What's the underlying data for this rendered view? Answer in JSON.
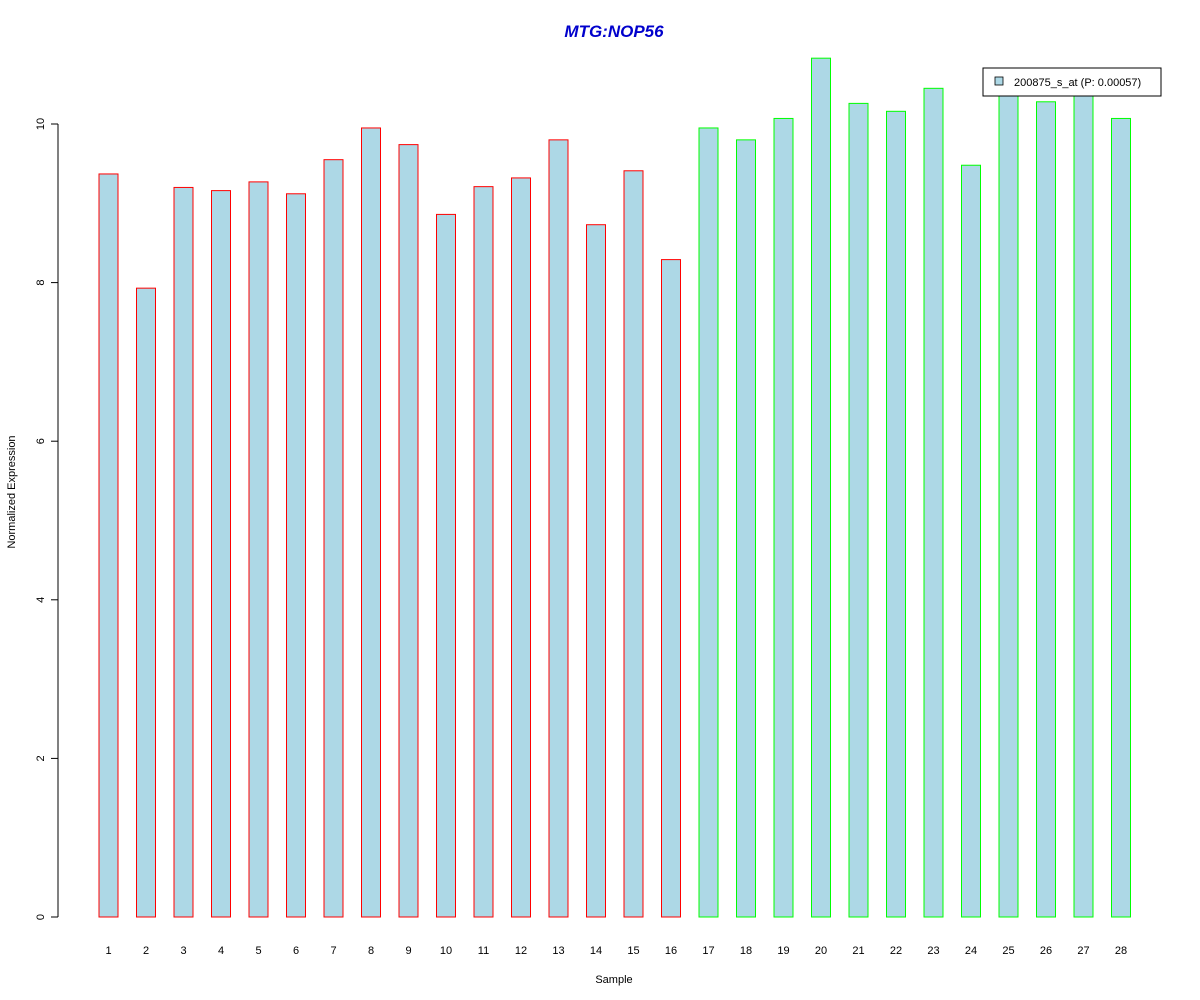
{
  "chart_data": {
    "type": "bar",
    "title": "MTG:NOP56",
    "xlabel": "Sample",
    "ylabel": "Normalized Expression",
    "ylim": [
      0,
      10.8
    ],
    "yticks": [
      0,
      2,
      4,
      6,
      8,
      10
    ],
    "categories": [
      "1",
      "2",
      "3",
      "4",
      "5",
      "6",
      "7",
      "8",
      "9",
      "10",
      "11",
      "12",
      "13",
      "14",
      "15",
      "16",
      "17",
      "18",
      "19",
      "20",
      "21",
      "22",
      "23",
      "24",
      "25",
      "26",
      "27",
      "28"
    ],
    "values": [
      9.37,
      7.93,
      9.2,
      9.16,
      9.27,
      9.12,
      9.55,
      9.95,
      9.74,
      8.86,
      9.21,
      9.32,
      9.8,
      8.73,
      9.41,
      8.29,
      9.95,
      9.8,
      10.07,
      10.83,
      10.26,
      10.16,
      10.45,
      9.48,
      10.4,
      10.28,
      10.4,
      10.07
    ],
    "groups": [
      "red",
      "red",
      "red",
      "red",
      "red",
      "red",
      "red",
      "red",
      "red",
      "red",
      "red",
      "red",
      "red",
      "red",
      "red",
      "red",
      "green",
      "green",
      "green",
      "green",
      "green",
      "green",
      "green",
      "green",
      "green",
      "green",
      "green",
      "green"
    ],
    "colors": {
      "fill": "#ADD8E6",
      "red": "#FF0000",
      "green": "#00FF00",
      "title": "#0000CC"
    },
    "legend": {
      "label": "200875_s_at (P: 0.00057)",
      "position": "top-right"
    },
    "grid": false
  }
}
